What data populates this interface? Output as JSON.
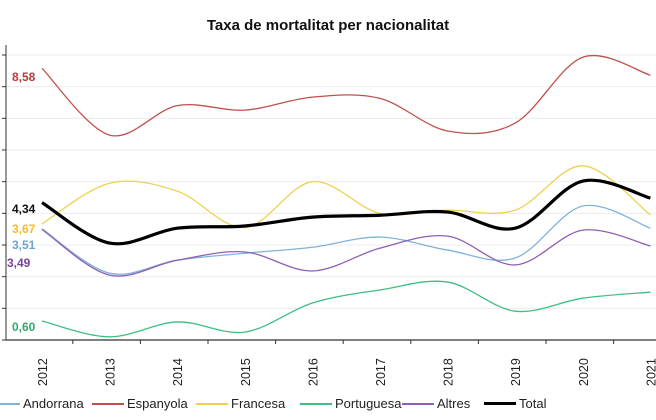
{
  "chart_data": {
    "type": "line",
    "title": "Taxa de mortalitat per nacionalitat",
    "xlabel": "",
    "ylabel": "",
    "x": [
      "2012",
      "2013",
      "2014",
      "2015",
      "2016",
      "2017",
      "2018",
      "2019",
      "2020",
      "2021"
    ],
    "ylim": [
      0,
      9
    ],
    "grid": true,
    "legend_position": "bottom",
    "series": [
      {
        "name": "Andorrana",
        "color": "#7fb3d8",
        "width": 1.3,
        "start_label": "3,51",
        "label_color": "#6fa3cf",
        "values": [
          3.51,
          2.11,
          2.52,
          2.74,
          2.93,
          3.25,
          2.84,
          2.59,
          4.23,
          3.53
        ]
      },
      {
        "name": "Espanyola",
        "color": "#c0504d",
        "width": 1.3,
        "start_label": "8,58",
        "label_color": "#c0393b",
        "values": [
          8.58,
          6.47,
          7.4,
          7.26,
          7.67,
          7.63,
          6.6,
          6.85,
          8.93,
          8.36
        ]
      },
      {
        "name": "Francesa",
        "color": "#f0d050",
        "width": 1.3,
        "start_label": "3,67",
        "label_color": "#f0c020",
        "values": [
          3.67,
          4.95,
          4.7,
          3.55,
          5.0,
          4.0,
          4.1,
          4.1,
          5.5,
          3.95
        ]
      },
      {
        "name": "Portuguesa",
        "color": "#3cbf80",
        "width": 1.3,
        "start_label": "0,60",
        "label_color": "#2eaa6a",
        "values": [
          0.6,
          0.1,
          0.57,
          0.25,
          1.17,
          1.58,
          1.83,
          0.91,
          1.32,
          1.51
        ]
      },
      {
        "name": "Altres",
        "color": "#8e5fb5",
        "width": 1.3,
        "start_label": "3,49",
        "label_color": "#7a3fa6",
        "values": [
          3.49,
          2.05,
          2.52,
          2.78,
          2.18,
          2.9,
          3.28,
          2.37,
          3.47,
          2.97
        ]
      },
      {
        "name": "Total",
        "color": "#000000",
        "width": 3.2,
        "start_label": "4,34",
        "label_color": "#111111",
        "values": [
          4.34,
          3.06,
          3.53,
          3.6,
          3.88,
          3.94,
          4.04,
          3.53,
          5.02,
          4.48
        ]
      }
    ]
  }
}
